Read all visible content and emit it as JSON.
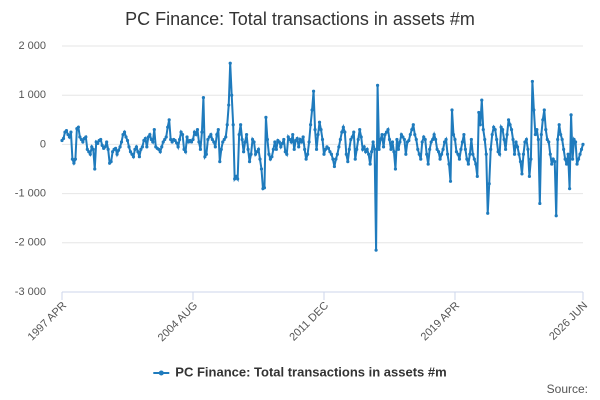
{
  "chart_data": {
    "type": "line",
    "title": "PC Finance: Total transactions in assets #m",
    "source_label": "Source:",
    "categories": [
      "1997 APR",
      null,
      null,
      null,
      null,
      null,
      null,
      null,
      null,
      null,
      null,
      null,
      null,
      null,
      null,
      null,
      null,
      null,
      null,
      null,
      null,
      null,
      null,
      null,
      null,
      null,
      null,
      null,
      null,
      null,
      null,
      null,
      null,
      null,
      null,
      null,
      null,
      null,
      null,
      null,
      null,
      null,
      null,
      null,
      null,
      null,
      null,
      null,
      null,
      null,
      null,
      null,
      null,
      null,
      null,
      null,
      null,
      null,
      null,
      null,
      null,
      null,
      null,
      null,
      null,
      null,
      null,
      null,
      null,
      null,
      null,
      null,
      null,
      null,
      null,
      null,
      null,
      null,
      null,
      null,
      null,
      null,
      null,
      null,
      null,
      null,
      null,
      null,
      "2004 AUG",
      null,
      null,
      null,
      null,
      null,
      null,
      null,
      null,
      null,
      null,
      null,
      null,
      null,
      null,
      null,
      null,
      null,
      null,
      null,
      null,
      null,
      null,
      null,
      null,
      null,
      null,
      null,
      null,
      null,
      null,
      null,
      null,
      null,
      null,
      null,
      null,
      null,
      null,
      null,
      null,
      null,
      null,
      null,
      null,
      null,
      null,
      null,
      null,
      null,
      null,
      null,
      null,
      null,
      null,
      null,
      null,
      null,
      null,
      null,
      null,
      null,
      null,
      null,
      null,
      null,
      null,
      null,
      null,
      null,
      null,
      null,
      null,
      null,
      null,
      null,
      null,
      null,
      null,
      null,
      null,
      null,
      null,
      null,
      null,
      null,
      null,
      null,
      "2011 DEC",
      null,
      null,
      null,
      null,
      null,
      null,
      null,
      null,
      null,
      null,
      null,
      null,
      null,
      null,
      null,
      null,
      null,
      null,
      null,
      null,
      null,
      null,
      null,
      null,
      null,
      null,
      null,
      null,
      null,
      null,
      null,
      null,
      null,
      null,
      null,
      null,
      null,
      null,
      null,
      null,
      null,
      null,
      null,
      null,
      null,
      null,
      null,
      null,
      null,
      null,
      null,
      null,
      null,
      null,
      null,
      null,
      null,
      null,
      null,
      null,
      null,
      null,
      null,
      null,
      null,
      null,
      null,
      null,
      null,
      null,
      null,
      null,
      null,
      null,
      null,
      null,
      null,
      null,
      null,
      null,
      null,
      null,
      null,
      null,
      null,
      null,
      null,
      "2019 APR",
      null,
      null,
      null,
      null,
      null,
      null,
      null,
      null,
      null,
      null,
      null,
      null,
      null,
      null,
      null,
      null,
      null,
      null,
      null,
      null,
      null,
      null,
      null,
      null,
      null,
      null,
      null,
      null,
      null,
      null,
      null,
      null,
      null,
      null,
      null,
      null,
      null,
      null,
      null,
      null,
      null,
      null,
      null,
      null,
      null,
      null,
      null,
      null,
      null,
      null,
      null,
      null,
      null,
      null,
      null,
      null,
      null,
      null,
      null,
      null,
      null,
      null,
      null,
      null,
      null,
      null,
      null,
      null,
      null,
      null,
      null,
      null,
      null,
      null,
      null,
      null,
      null,
      null,
      null,
      null,
      null,
      null,
      null,
      null,
      null,
      "2026 JUN"
    ],
    "series": [
      {
        "name": "PC Finance: Total transactions in assets #m",
        "color": "#1f7bbd",
        "values": [
          80,
          120,
          250,
          280,
          200,
          150,
          250,
          -300,
          -380,
          -300,
          320,
          350,
          150,
          100,
          50,
          120,
          150,
          -100,
          -150,
          -200,
          -50,
          -100,
          -500,
          50,
          20,
          80,
          100,
          -20,
          -80,
          -50,
          50,
          -100,
          -380,
          -350,
          -150,
          -100,
          -80,
          -200,
          -120,
          -50,
          50,
          200,
          250,
          150,
          80,
          -50,
          -150,
          -200,
          -250,
          -100,
          -50,
          -150,
          -250,
          -100,
          -50,
          80,
          120,
          -50,
          150,
          200,
          100,
          50,
          300,
          -50,
          -80,
          -100,
          -150,
          -50,
          50,
          100,
          150,
          350,
          500,
          100,
          50,
          100,
          80,
          30,
          -50,
          100,
          250,
          200,
          -100,
          -150,
          150,
          50,
          80,
          50,
          100,
          250,
          200,
          300,
          50,
          -100,
          250,
          950,
          -250,
          -200,
          100,
          150,
          200,
          100,
          50,
          -50,
          200,
          300,
          -350,
          -100,
          50,
          100,
          150,
          400,
          800,
          1650,
          1000,
          400,
          -700,
          -650,
          -700,
          200,
          400,
          100,
          -150,
          50,
          200,
          -100,
          -350,
          -200,
          100,
          50,
          -200,
          -150,
          -100,
          -300,
          -500,
          -900,
          -880,
          550,
          100,
          -200,
          -300,
          -250,
          -100,
          50,
          -100,
          80,
          50,
          -50,
          20,
          100,
          -150,
          -200,
          150,
          100,
          50,
          200,
          -100,
          80,
          120,
          -50,
          100,
          50,
          150,
          -100,
          -300,
          -200,
          50,
          400,
          700,
          1080,
          300,
          -100,
          200,
          450,
          300,
          100,
          -200,
          -100,
          -50,
          -80,
          -150,
          -200,
          -300,
          -450,
          -300,
          -200,
          -50,
          100,
          250,
          350,
          250,
          -200,
          -350,
          -100,
          100,
          150,
          250,
          -300,
          -100,
          100,
          300,
          150,
          -100,
          -50,
          -150,
          -100,
          -200,
          -400,
          -150,
          50,
          -100,
          -2150,
          1200,
          -100,
          100,
          200,
          -50,
          200,
          250,
          300,
          100,
          -100,
          50,
          -150,
          -500,
          100,
          -100,
          50,
          200,
          150,
          100,
          -200,
          50,
          80,
          200,
          300,
          400,
          200,
          100,
          -100,
          -200,
          -300,
          50,
          150,
          100,
          -200,
          -400,
          -100,
          50,
          100,
          200,
          100,
          -100,
          -150,
          -300,
          -200,
          -100,
          50,
          100,
          -200,
          -400,
          -750,
          700,
          200,
          100,
          -150,
          -200,
          -300,
          -100,
          50,
          200,
          -100,
          -300,
          -400,
          -200,
          100,
          -200,
          -300,
          -400,
          -650,
          650,
          400,
          900,
          300,
          100,
          -200,
          -1400,
          -800,
          -100,
          200,
          350,
          300,
          100,
          -150,
          -200,
          350,
          300,
          100,
          -100,
          200,
          500,
          400,
          300,
          100,
          -200,
          50,
          -50,
          -200,
          -350,
          -600,
          -200,
          50,
          100,
          -100,
          -650,
          -300,
          1280,
          700,
          200,
          300,
          100,
          -1200,
          200,
          500,
          700,
          300,
          100,
          50,
          -200,
          -400,
          -300,
          -350,
          -1450,
          100,
          400,
          200,
          100,
          -100,
          -300,
          -400,
          -200,
          -900,
          600,
          -300,
          100,
          50,
          -400,
          -300,
          -200,
          -100,
          0
        ]
      }
    ],
    "ylim": [
      -3000,
      2000
    ],
    "yticks": [
      {
        "value": -3000,
        "label": "-3 000"
      },
      {
        "value": -2000,
        "label": "-2 000"
      },
      {
        "value": -1000,
        "label": "-1 000"
      },
      0,
      {
        "value": 1000,
        "label": "1 000"
      },
      {
        "value": 2000,
        "label": "2 000"
      }
    ],
    "grid": true
  }
}
